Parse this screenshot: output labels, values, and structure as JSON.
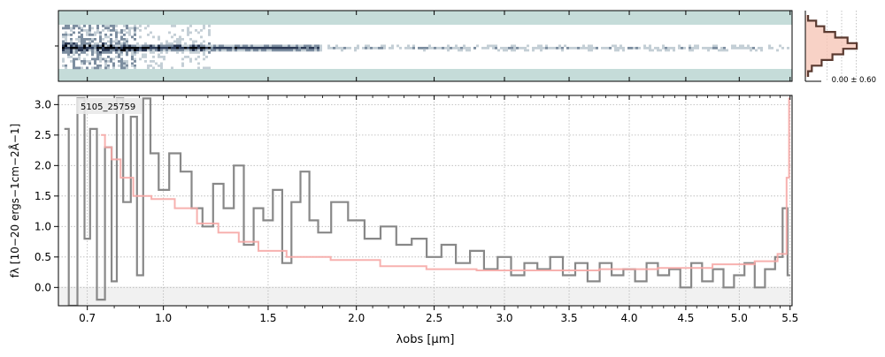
{
  "chart_data": [
    {
      "type": "heatmap",
      "panel": "2D spectrum",
      "colormap": [
        "#ffffff",
        "#c5dcd9",
        "#2a3a55",
        "#000000"
      ],
      "background": "#c5dcd9",
      "trace_center_row_fraction": 0.5
    },
    {
      "type": "histogram",
      "panel": "pixel distribution",
      "annotation": "0.00 ± 0.60",
      "fill_color": "#f6c7b8",
      "line_color": "#5a3a30"
    },
    {
      "type": "line",
      "panel": "1D spectrum",
      "label": "5105_25759",
      "xlabel": "λobs [μm]",
      "ylabel": "fλ [10−20 ergs−1cm−2Å−1]",
      "xscale": "sqrt",
      "xlim": [
        0.6,
        5.52
      ],
      "ylim": [
        -0.3,
        3.15
      ],
      "xticks": [
        0.7,
        1.0,
        1.5,
        2.0,
        2.5,
        3.0,
        3.5,
        4.0,
        4.5,
        5.0,
        5.5
      ],
      "xtick_labels": [
        "0.7",
        "1.0",
        "1.5",
        "2.0",
        "2.5",
        "3.0",
        "3.5",
        "4.0",
        "4.5",
        "5.0",
        "5.5"
      ],
      "yticks": [
        0.0,
        0.5,
        1.0,
        1.5,
        2.0,
        2.5,
        3.0
      ],
      "ytick_labels": [
        "0.0",
        "0.5",
        "1.0",
        "1.5",
        "2.0",
        "2.5",
        "3.0"
      ],
      "grid": true,
      "series": [
        {
          "kind": "data",
          "color": "#888888",
          "x": [
            0.62,
            0.65,
            0.68,
            0.7,
            0.72,
            0.75,
            0.78,
            0.8,
            0.82,
            0.85,
            0.88,
            0.9,
            0.93,
            0.96,
            1.0,
            1.05,
            1.1,
            1.15,
            1.2,
            1.25,
            1.3,
            1.35,
            1.4,
            1.45,
            1.5,
            1.55,
            1.6,
            1.65,
            1.7,
            1.75,
            1.8,
            1.9,
            2.0,
            2.1,
            2.2,
            2.3,
            2.4,
            2.5,
            2.6,
            2.7,
            2.8,
            2.9,
            3.0,
            3.1,
            3.2,
            3.3,
            3.4,
            3.5,
            3.6,
            3.7,
            3.8,
            3.9,
            4.0,
            4.1,
            4.2,
            4.3,
            4.4,
            4.5,
            4.6,
            4.7,
            4.8,
            4.9,
            5.0,
            5.1,
            5.2,
            5.3,
            5.4,
            5.45,
            5.5
          ],
          "y": [
            2.6,
            -0.3,
            3.1,
            0.8,
            2.6,
            -0.2,
            2.3,
            0.1,
            3.1,
            1.4,
            2.8,
            0.2,
            3.1,
            2.2,
            1.6,
            2.2,
            1.9,
            1.3,
            1.0,
            1.7,
            1.3,
            2.0,
            0.7,
            1.3,
            1.1,
            1.6,
            0.4,
            1.4,
            1.9,
            1.1,
            0.9,
            1.4,
            1.1,
            0.8,
            1.0,
            0.7,
            0.8,
            0.5,
            0.7,
            0.4,
            0.6,
            0.3,
            0.5,
            0.2,
            0.4,
            0.3,
            0.5,
            0.2,
            0.4,
            0.1,
            0.4,
            0.2,
            0.3,
            0.1,
            0.4,
            0.2,
            0.3,
            0.0,
            0.4,
            0.1,
            0.3,
            0.0,
            0.2,
            0.4,
            0.0,
            0.3,
            0.5,
            1.3,
            0.2
          ]
        },
        {
          "kind": "model",
          "color": "#f6a8a6",
          "x": [
            0.75,
            0.78,
            0.8,
            0.85,
            0.9,
            1.0,
            1.1,
            1.2,
            1.3,
            1.4,
            1.5,
            1.7,
            2.0,
            2.3,
            2.6,
            3.0,
            3.5,
            4.0,
            4.5,
            5.0,
            5.3,
            5.45,
            5.48,
            5.5
          ],
          "y": [
            2.5,
            2.3,
            2.1,
            1.8,
            1.5,
            1.45,
            1.3,
            1.05,
            0.9,
            0.75,
            0.6,
            0.5,
            0.45,
            0.35,
            0.3,
            0.28,
            0.28,
            0.3,
            0.32,
            0.38,
            0.43,
            0.55,
            1.8,
            3.1
          ]
        }
      ]
    }
  ]
}
